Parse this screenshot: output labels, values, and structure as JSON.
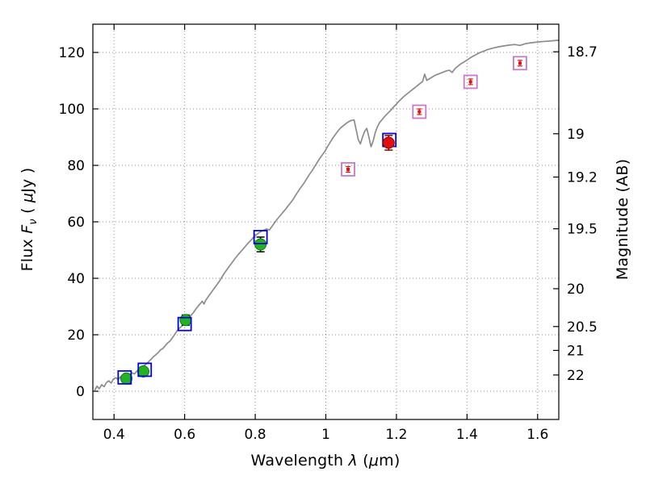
{
  "axis_labels": {
    "x": [
      {
        "text": "Wavelength  "
      },
      {
        "text": "λ"
      },
      {
        "text": " ("
      },
      {
        "text": "μ"
      },
      {
        "text": "m)"
      }
    ],
    "y_left": [
      {
        "text": "Flux  "
      },
      {
        "text": "F"
      },
      {
        "text": "ν"
      },
      {
        "text": "  ( "
      },
      {
        "text": "μ"
      },
      {
        "text": "Jy )"
      }
    ],
    "y_right": [
      {
        "text": "Magnitude (AB)"
      }
    ]
  },
  "chart_data": {
    "type": "line",
    "title": "",
    "xlabel": "Wavelength λ (μm)",
    "ylabel": "Flux Fν ( μJy )",
    "ylabel_right": "Magnitude (AB)",
    "xlim": [
      0.34,
      1.66
    ],
    "ylim": [
      -10,
      130
    ],
    "grid": true,
    "grid_style": "dotted",
    "legend_position": "none",
    "x_ticks": {
      "values": [
        0.4,
        0.6,
        0.8,
        1.0,
        1.2,
        1.4,
        1.6
      ],
      "labels": [
        "0.4",
        "0.6",
        "0.8",
        "1",
        "1.2",
        "1.4",
        "1.6"
      ]
    },
    "y_ticks_left": {
      "values": [
        0,
        20,
        40,
        60,
        80,
        100,
        120
      ],
      "labels": [
        "0",
        "20",
        "40",
        "60",
        "80",
        "100",
        "120"
      ]
    },
    "y_ticks_right": {
      "labels": [
        "18.7",
        "19",
        "19.2",
        "19.5",
        "20",
        "20.5",
        "21",
        "22"
      ],
      "ab_magnitudes": [
        18.7,
        19.0,
        19.2,
        19.5,
        20.0,
        20.5,
        21.0,
        22.0
      ],
      "flux_positions": [
        120.23,
        91.2,
        75.86,
        57.54,
        36.31,
        22.91,
        14.45,
        5.75
      ]
    },
    "colors": {
      "spectrum": "#8c8c8c",
      "green_marker": "#22b222",
      "green_edge": "#0c7a0c",
      "blue_square": "#0000dd",
      "red_marker": "#e01010",
      "red_edge": "#8b0000",
      "violet_square": "#c879c8",
      "error_bar_black": "#000000",
      "error_bar_red": "#880000",
      "grid": "#000000",
      "axes": "#000000"
    },
    "series": [
      {
        "name": "model-spectrum",
        "marker": "line",
        "color": "#8c8c8c",
        "points": [
          [
            0.345,
            0.3
          ],
          [
            0.352,
            1.8
          ],
          [
            0.358,
            0.9
          ],
          [
            0.365,
            2.3
          ],
          [
            0.372,
            1.6
          ],
          [
            0.378,
            3.0
          ],
          [
            0.385,
            3.7
          ],
          [
            0.392,
            2.9
          ],
          [
            0.398,
            4.3
          ],
          [
            0.405,
            4.8
          ],
          [
            0.412,
            4.1
          ],
          [
            0.418,
            5.1
          ],
          [
            0.425,
            4.7
          ],
          [
            0.432,
            5.4
          ],
          [
            0.438,
            5.1
          ],
          [
            0.445,
            5.9
          ],
          [
            0.452,
            6.5
          ],
          [
            0.458,
            6.1
          ],
          [
            0.465,
            7.2
          ],
          [
            0.472,
            7.9
          ],
          [
            0.478,
            8.5
          ],
          [
            0.485,
            9.1
          ],
          [
            0.492,
            9.7
          ],
          [
            0.498,
            10.5
          ],
          [
            0.505,
            11.3
          ],
          [
            0.512,
            12.3
          ],
          [
            0.518,
            12.9
          ],
          [
            0.525,
            13.7
          ],
          [
            0.532,
            14.7
          ],
          [
            0.538,
            15.1
          ],
          [
            0.545,
            16.1
          ],
          [
            0.552,
            17.1
          ],
          [
            0.558,
            17.7
          ],
          [
            0.565,
            18.9
          ],
          [
            0.572,
            20.1
          ],
          [
            0.578,
            21.3
          ],
          [
            0.585,
            22.3
          ],
          [
            0.592,
            23.1
          ],
          [
            0.598,
            23.9
          ],
          [
            0.605,
            25.1
          ],
          [
            0.612,
            26.1
          ],
          [
            0.618,
            26.9
          ],
          [
            0.625,
            27.9
          ],
          [
            0.632,
            29.1
          ],
          [
            0.638,
            30.1
          ],
          [
            0.645,
            31.1
          ],
          [
            0.65,
            31.9
          ],
          [
            0.655,
            30.9
          ],
          [
            0.66,
            32.3
          ],
          [
            0.668,
            33.7
          ],
          [
            0.675,
            34.9
          ],
          [
            0.682,
            36.1
          ],
          [
            0.69,
            37.5
          ],
          [
            0.698,
            38.9
          ],
          [
            0.705,
            40.3
          ],
          [
            0.712,
            41.7
          ],
          [
            0.72,
            43.1
          ],
          [
            0.728,
            44.5
          ],
          [
            0.735,
            45.7
          ],
          [
            0.742,
            46.9
          ],
          [
            0.75,
            48.1
          ],
          [
            0.758,
            49.3
          ],
          [
            0.765,
            50.3
          ],
          [
            0.772,
            51.3
          ],
          [
            0.78,
            52.5
          ],
          [
            0.788,
            53.5
          ],
          [
            0.795,
            54.5
          ],
          [
            0.802,
            55.3
          ],
          [
            0.81,
            56.1
          ],
          [
            0.818,
            56.7
          ],
          [
            0.825,
            57.1
          ],
          [
            0.832,
            57.5
          ],
          [
            0.84,
            57.1
          ],
          [
            0.848,
            58.5
          ],
          [
            0.855,
            59.7
          ],
          [
            0.862,
            60.9
          ],
          [
            0.87,
            62.1
          ],
          [
            0.878,
            63.3
          ],
          [
            0.885,
            64.3
          ],
          [
            0.892,
            65.5
          ],
          [
            0.9,
            66.7
          ],
          [
            0.908,
            68.1
          ],
          [
            0.915,
            69.5
          ],
          [
            0.922,
            70.9
          ],
          [
            0.93,
            72.3
          ],
          [
            0.938,
            73.7
          ],
          [
            0.945,
            75.1
          ],
          [
            0.952,
            76.5
          ],
          [
            0.96,
            77.9
          ],
          [
            0.968,
            79.5
          ],
          [
            0.975,
            80.9
          ],
          [
            0.982,
            82.3
          ],
          [
            0.99,
            83.7
          ],
          [
            0.998,
            85.1
          ],
          [
            1.005,
            86.7
          ],
          [
            1.012,
            88.1
          ],
          [
            1.02,
            89.7
          ],
          [
            1.028,
            91.1
          ],
          [
            1.035,
            92.3
          ],
          [
            1.042,
            93.3
          ],
          [
            1.05,
            94.1
          ],
          [
            1.058,
            94.9
          ],
          [
            1.065,
            95.5
          ],
          [
            1.072,
            95.9
          ],
          [
            1.08,
            96.1
          ],
          [
            1.086,
            92.6
          ],
          [
            1.092,
            89.1
          ],
          [
            1.098,
            87.6
          ],
          [
            1.104,
            90.1
          ],
          [
            1.11,
            92.1
          ],
          [
            1.116,
            93.1
          ],
          [
            1.122,
            90.1
          ],
          [
            1.128,
            86.6
          ],
          [
            1.134,
            88.6
          ],
          [
            1.14,
            91.6
          ],
          [
            1.146,
            93.6
          ],
          [
            1.152,
            95.1
          ],
          [
            1.16,
            96.3
          ],
          [
            1.168,
            97.5
          ],
          [
            1.176,
            98.5
          ],
          [
            1.184,
            99.5
          ],
          [
            1.192,
            100.7
          ],
          [
            1.2,
            101.7
          ],
          [
            1.21,
            103.1
          ],
          [
            1.22,
            104.3
          ],
          [
            1.23,
            105.3
          ],
          [
            1.24,
            106.3
          ],
          [
            1.25,
            107.3
          ],
          [
            1.258,
            108.1
          ],
          [
            1.266,
            108.9
          ],
          [
            1.274,
            109.7
          ],
          [
            1.28,
            112.3
          ],
          [
            1.286,
            110.1
          ],
          [
            1.294,
            110.7
          ],
          [
            1.302,
            111.3
          ],
          [
            1.31,
            111.9
          ],
          [
            1.318,
            112.3
          ],
          [
            1.326,
            112.7
          ],
          [
            1.334,
            113.1
          ],
          [
            1.342,
            113.5
          ],
          [
            1.35,
            113.7
          ],
          [
            1.358,
            112.9
          ],
          [
            1.366,
            114.3
          ],
          [
            1.374,
            115.1
          ],
          [
            1.382,
            115.9
          ],
          [
            1.39,
            116.5
          ],
          [
            1.4,
            117.3
          ],
          [
            1.412,
            118.3
          ],
          [
            1.424,
            119.1
          ],
          [
            1.436,
            119.9
          ],
          [
            1.448,
            120.5
          ],
          [
            1.46,
            121.1
          ],
          [
            1.475,
            121.6
          ],
          [
            1.49,
            122.0
          ],
          [
            1.505,
            122.3
          ],
          [
            1.52,
            122.6
          ],
          [
            1.535,
            122.8
          ],
          [
            1.55,
            122.5
          ],
          [
            1.565,
            123.1
          ],
          [
            1.58,
            123.4
          ],
          [
            1.6,
            123.7
          ],
          [
            1.62,
            123.9
          ],
          [
            1.64,
            124.1
          ],
          [
            1.66,
            124.3
          ]
        ]
      },
      {
        "name": "observed-photometry-optical-green-circles",
        "marker": "circle",
        "fill": "#22b222",
        "edge": "#0c7a0c",
        "error_color": "#000000",
        "size": 7,
        "points": [
          {
            "x": 0.435,
            "y": 4.5,
            "err": 1.2
          },
          {
            "x": 0.483,
            "y": 7.0,
            "err": 1.2
          },
          {
            "x": 0.603,
            "y": 25.2,
            "err": 1.8
          },
          {
            "x": 0.815,
            "y": 52.0,
            "err": 2.6
          }
        ]
      },
      {
        "name": "synthetic-photometry-blue-squares",
        "marker": "square",
        "edge": "#0000dd",
        "size": 16,
        "points": [
          {
            "x": 0.43,
            "y": 4.9
          },
          {
            "x": 0.487,
            "y": 7.6
          },
          {
            "x": 0.6,
            "y": 23.8
          },
          {
            "x": 0.815,
            "y": 54.6
          },
          {
            "x": 1.18,
            "y": 89.0
          }
        ]
      },
      {
        "name": "observed-photometry-nir-red-circle",
        "marker": "circle",
        "fill": "#e01010",
        "edge": "#8b0000",
        "error_color": "#880000",
        "size": 7,
        "points": [
          {
            "x": 1.178,
            "y": 88.0,
            "err": 2.6
          }
        ]
      },
      {
        "name": "model-photometry-violet-squares",
        "marker": "square-red-inner",
        "edge": "#c879c8",
        "inner": "#e01010",
        "size": 16,
        "points": [
          {
            "x": 1.063,
            "y": 78.6,
            "err": 1.0
          },
          {
            "x": 1.265,
            "y": 99.0,
            "err": 1.0
          },
          {
            "x": 1.41,
            "y": 109.6,
            "err": 1.0
          },
          {
            "x": 1.55,
            "y": 116.2,
            "err": 1.0
          }
        ]
      }
    ]
  }
}
